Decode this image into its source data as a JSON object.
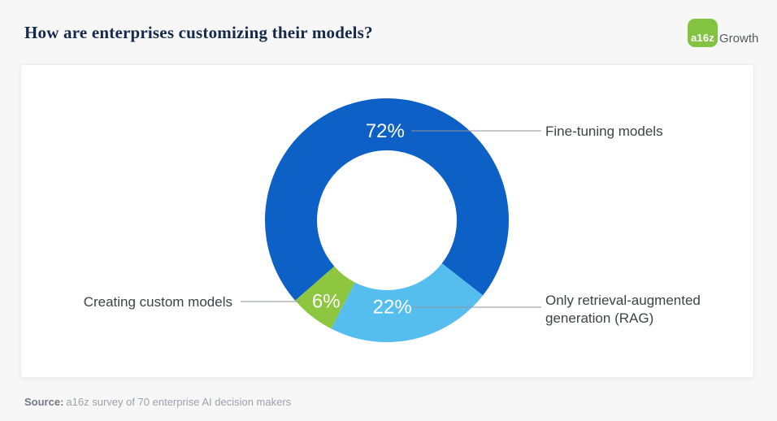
{
  "page": {
    "title": "How are enterprises customizing their models?",
    "logo": {
      "mark": "a16z",
      "suffix": "Growth",
      "color": "#82C341"
    },
    "source": {
      "label": "Source:",
      "text": "a16z survey of 70 enterprise AI decision makers"
    }
  },
  "chart_data": {
    "type": "pie",
    "variant": "donut",
    "title": "How are enterprises customizing their models?",
    "start_angle_deg": 128,
    "total": 100,
    "legend_position": "callout-labels",
    "segments": [
      {
        "label": "Only retrieval-augmented generation (RAG)",
        "value": 22,
        "display": "22%",
        "color": "#55BEEF"
      },
      {
        "label": "Creating custom models",
        "value": 6,
        "display": "6%",
        "color": "#8DC63F"
      },
      {
        "label": "Fine-tuning models",
        "value": 72,
        "display": "72%",
        "color": "#0D60C6"
      }
    ],
    "colors": {
      "connector_line": "#8F9499",
      "value_label_text": "#FFFFFF"
    },
    "source": "a16z survey of 70 enterprise AI decision makers"
  }
}
